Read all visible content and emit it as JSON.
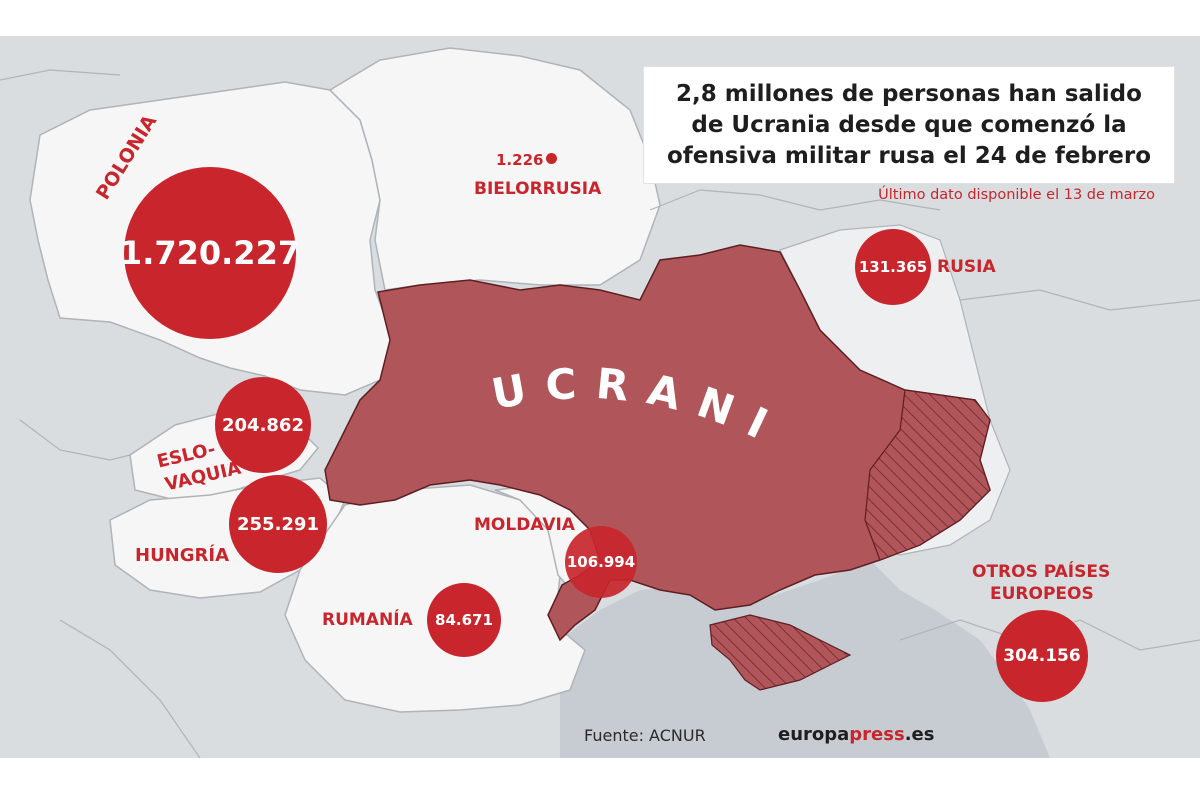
{
  "title": "2,8 millones de personas han salido de Ucrania desde que comenzó la ofensiva militar rusa el 24 de febrero",
  "subtitle": "Último dato disponible el 13 de marzo",
  "main_country_label": "UCRANIA",
  "countries": [
    {
      "key": "polonia",
      "label": "POLONIA",
      "value": "1.720.227",
      "refugees": 1720227
    },
    {
      "key": "bielorrusia",
      "label": "BIELORRUSIA",
      "value": "1.226",
      "refugees": 1226
    },
    {
      "key": "rusia",
      "label": "RUSIA",
      "value": "131.365",
      "refugees": 131365
    },
    {
      "key": "eslovaquia",
      "label_line1": "ESLO-",
      "label_line2": "VAQUIA",
      "value": "204.862",
      "refugees": 204862
    },
    {
      "key": "hungria",
      "label": "HUNGRÍA",
      "value": "255.291",
      "refugees": 255291
    },
    {
      "key": "moldavia",
      "label": "MOLDAVIA",
      "value": "106.994",
      "refugees": 106994
    },
    {
      "key": "rumania",
      "label": "RUMANÍA",
      "value": "84.671",
      "refugees": 84671
    },
    {
      "key": "otros",
      "label_line1": "OTROS PAÍSES",
      "label_line2": "EUROPEOS",
      "value": "304.156",
      "refugees": 304156
    }
  ],
  "source": "Fuente: ACNUR",
  "brand": {
    "part1": "europa",
    "part2": "press",
    "part3": ".es"
  },
  "colors": {
    "accent": "#c8252c",
    "ukraine_fill": "#b0565b",
    "land_light": "#f7f7f7",
    "land_grey": "#d9dde0",
    "sea": "#c8ced3"
  }
}
